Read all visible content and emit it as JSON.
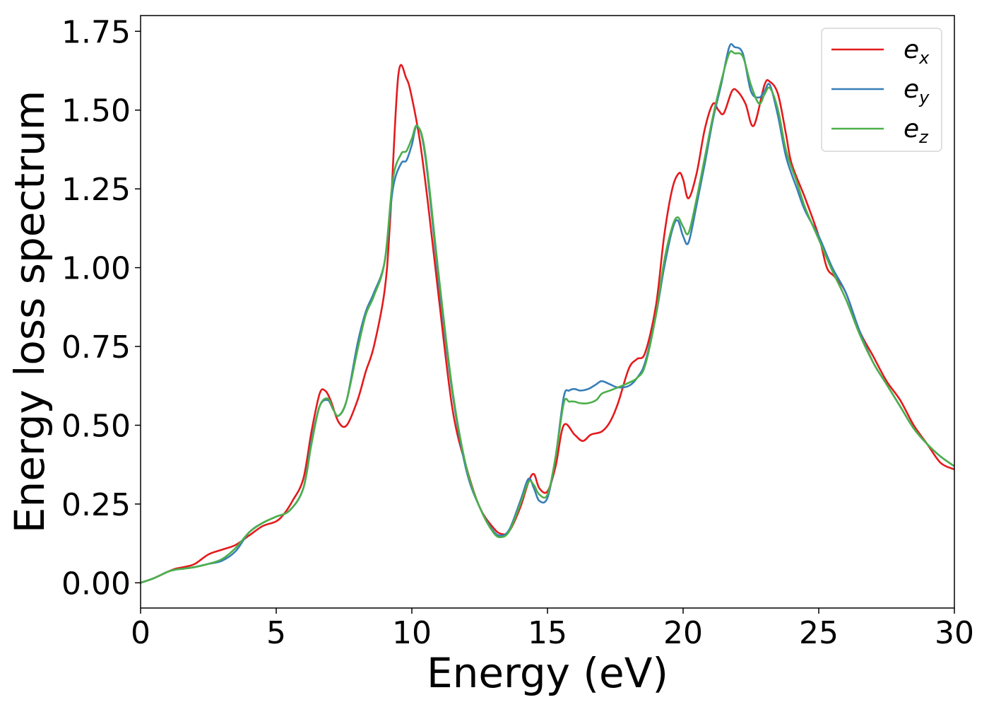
{
  "chart_data": {
    "type": "line",
    "xlabel": "Energy (eV)",
    "ylabel": "Energy loss spectrum",
    "xlim": [
      0,
      30
    ],
    "ylim": [
      -0.08,
      1.8
    ],
    "grid": false,
    "legend_position": "top-right",
    "x_ticks": [
      "0",
      "5",
      "10",
      "15",
      "20",
      "25",
      "30"
    ],
    "y_ticks": [
      "0.00",
      "0.25",
      "0.50",
      "0.75",
      "1.00",
      "1.25",
      "1.50",
      "1.75"
    ],
    "series": [
      {
        "name": "e_x",
        "label_base": "e",
        "label_sub": "x",
        "color": "#e41a1c",
        "x": [
          0,
          0.5,
          1,
          1.3,
          1.6,
          2,
          2.5,
          3,
          3.5,
          4,
          4.5,
          5,
          5.3,
          5.6,
          6,
          6.3,
          6.6,
          6.8,
          7,
          7.3,
          7.6,
          8,
          8.3,
          8.6,
          9,
          9.2,
          9.5,
          9.8,
          10,
          10.3,
          10.6,
          11,
          11.5,
          12,
          12.5,
          13,
          13.3,
          13.6,
          14,
          14.3,
          14.5,
          14.7,
          15,
          15.3,
          15.6,
          16,
          16.3,
          16.6,
          17,
          17.3,
          17.6,
          18,
          18.3,
          18.6,
          19,
          19.3,
          19.6,
          19.85,
          20,
          20.2,
          20.5,
          20.8,
          21.1,
          21.3,
          21.5,
          21.8,
          22,
          22.3,
          22.6,
          23,
          23.2,
          23.5,
          23.8,
          24,
          24.5,
          25,
          25.3,
          25.6,
          26,
          26.5,
          27,
          27.5,
          28,
          28.5,
          29,
          29.5,
          30
        ],
        "values": [
          0.0,
          0.015,
          0.035,
          0.045,
          0.05,
          0.06,
          0.09,
          0.105,
          0.12,
          0.15,
          0.18,
          0.195,
          0.22,
          0.26,
          0.33,
          0.48,
          0.6,
          0.61,
          0.58,
          0.51,
          0.5,
          0.58,
          0.67,
          0.75,
          0.93,
          1.15,
          1.61,
          1.6,
          1.54,
          1.4,
          1.2,
          0.9,
          0.55,
          0.37,
          0.24,
          0.175,
          0.155,
          0.165,
          0.24,
          0.32,
          0.345,
          0.3,
          0.29,
          0.37,
          0.5,
          0.47,
          0.45,
          0.47,
          0.48,
          0.51,
          0.57,
          0.68,
          0.71,
          0.73,
          0.88,
          1.1,
          1.25,
          1.3,
          1.28,
          1.22,
          1.3,
          1.44,
          1.52,
          1.5,
          1.49,
          1.56,
          1.56,
          1.52,
          1.45,
          1.58,
          1.59,
          1.55,
          1.42,
          1.33,
          1.22,
          1.1,
          1.0,
          0.97,
          0.92,
          0.8,
          0.72,
          0.64,
          0.58,
          0.5,
          0.44,
          0.38,
          0.36
        ]
      },
      {
        "name": "e_y",
        "label_base": "e",
        "label_sub": "y",
        "color": "#377eb8",
        "x": [
          0,
          0.5,
          1,
          1.3,
          1.6,
          2,
          2.5,
          3,
          3.5,
          4,
          4.5,
          5,
          5.5,
          6,
          6.3,
          6.6,
          6.9,
          7.1,
          7.3,
          7.6,
          8,
          8.3,
          8.6,
          9,
          9.3,
          9.6,
          9.8,
          10,
          10.2,
          10.5,
          11,
          11.5,
          12,
          12.5,
          13,
          13.3,
          13.6,
          14,
          14.3,
          14.5,
          14.7,
          15,
          15.3,
          15.6,
          15.8,
          16,
          16.2,
          16.5,
          16.8,
          17,
          17.3,
          17.6,
          18,
          18.3,
          18.6,
          19,
          19.3,
          19.6,
          19.8,
          20,
          20.2,
          20.5,
          20.8,
          21.1,
          21.4,
          21.7,
          21.9,
          22.2,
          22.5,
          22.8,
          23,
          23.2,
          23.5,
          23.8,
          24.2,
          24.5,
          25,
          25.5,
          26,
          26.5,
          27,
          27.5,
          28,
          28.5,
          29,
          29.5,
          30
        ],
        "values": [
          0.0,
          0.015,
          0.035,
          0.042,
          0.045,
          0.05,
          0.06,
          0.07,
          0.1,
          0.16,
          0.19,
          0.21,
          0.23,
          0.3,
          0.45,
          0.56,
          0.58,
          0.55,
          0.53,
          0.58,
          0.76,
          0.86,
          0.92,
          1.02,
          1.25,
          1.33,
          1.34,
          1.39,
          1.45,
          1.35,
          0.95,
          0.6,
          0.36,
          0.24,
          0.165,
          0.15,
          0.17,
          0.26,
          0.33,
          0.3,
          0.26,
          0.27,
          0.4,
          0.59,
          0.61,
          0.615,
          0.61,
          0.615,
          0.63,
          0.64,
          0.63,
          0.62,
          0.625,
          0.65,
          0.7,
          0.85,
          1.0,
          1.12,
          1.15,
          1.1,
          1.08,
          1.2,
          1.33,
          1.47,
          1.58,
          1.7,
          1.7,
          1.68,
          1.56,
          1.54,
          1.56,
          1.58,
          1.48,
          1.35,
          1.25,
          1.18,
          1.1,
          1.0,
          0.92,
          0.8,
          0.7,
          0.63,
          0.56,
          0.49,
          0.44,
          0.4,
          0.37
        ]
      },
      {
        "name": "e_z",
        "label_base": "e",
        "label_sub": "z",
        "color": "#4daf4a",
        "x": [
          0,
          0.5,
          1,
          1.3,
          1.6,
          2,
          2.5,
          3,
          3.5,
          4,
          4.5,
          5,
          5.5,
          6,
          6.3,
          6.6,
          6.9,
          7.1,
          7.3,
          7.6,
          8,
          8.3,
          8.6,
          9,
          9.3,
          9.6,
          9.8,
          10,
          10.2,
          10.5,
          11,
          11.5,
          12,
          12.5,
          13,
          13.3,
          13.6,
          14,
          14.3,
          14.5,
          14.7,
          15,
          15.3,
          15.6,
          15.8,
          16,
          16.2,
          16.5,
          16.8,
          17,
          17.3,
          17.6,
          18,
          18.3,
          18.6,
          19,
          19.3,
          19.6,
          19.8,
          20,
          20.2,
          20.5,
          20.8,
          21.1,
          21.4,
          21.7,
          21.9,
          22.2,
          22.5,
          22.8,
          23,
          23.2,
          23.5,
          23.8,
          24.2,
          24.5,
          25,
          25.5,
          26,
          26.5,
          27,
          27.5,
          28,
          28.5,
          29,
          29.5,
          30
        ],
        "values": [
          0.0,
          0.015,
          0.035,
          0.042,
          0.045,
          0.05,
          0.06,
          0.075,
          0.11,
          0.16,
          0.19,
          0.21,
          0.23,
          0.3,
          0.44,
          0.56,
          0.585,
          0.55,
          0.53,
          0.58,
          0.74,
          0.85,
          0.91,
          1.02,
          1.28,
          1.36,
          1.37,
          1.41,
          1.45,
          1.36,
          0.97,
          0.61,
          0.37,
          0.24,
          0.16,
          0.145,
          0.165,
          0.25,
          0.32,
          0.31,
          0.28,
          0.28,
          0.4,
          0.57,
          0.575,
          0.575,
          0.57,
          0.57,
          0.58,
          0.6,
          0.61,
          0.62,
          0.635,
          0.65,
          0.69,
          0.85,
          1.02,
          1.13,
          1.16,
          1.13,
          1.11,
          1.22,
          1.35,
          1.48,
          1.59,
          1.68,
          1.68,
          1.67,
          1.58,
          1.52,
          1.55,
          1.57,
          1.5,
          1.37,
          1.27,
          1.19,
          1.09,
          0.99,
          0.9,
          0.79,
          0.7,
          0.63,
          0.56,
          0.49,
          0.44,
          0.4,
          0.37
        ]
      }
    ]
  }
}
